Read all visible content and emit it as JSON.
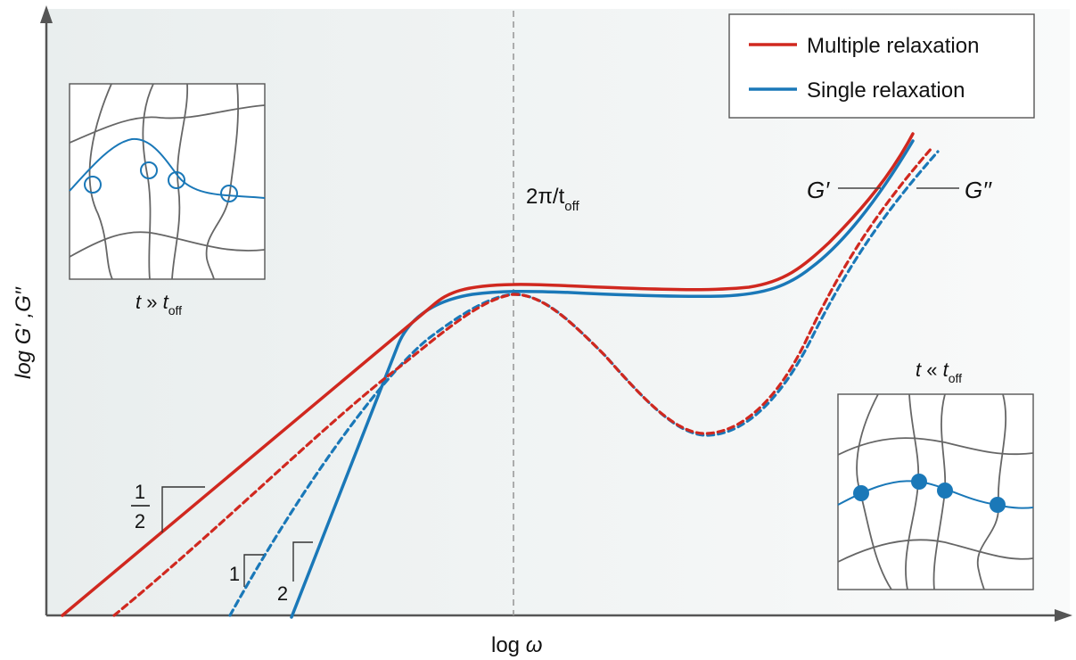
{
  "axes": {
    "x_label_prefix": "log ",
    "x_label_var": "ω",
    "y_label": "log G′ ,G′′"
  },
  "legend": {
    "items": [
      {
        "label": "Multiple relaxation",
        "color": "#d0281f"
      },
      {
        "label": "Single relaxation",
        "color": "#1a78b8"
      }
    ]
  },
  "annotations": {
    "crossover_main": "2π/t",
    "crossover_sub": "off",
    "g_prime": "G′",
    "g_double_prime": "G′′",
    "slope_half_num": "1",
    "slope_half_den": "2",
    "slope_one": "1",
    "slope_two": "2"
  },
  "insets": {
    "long_time": {
      "t": "t",
      "relation": " » ",
      "t2": "t",
      "sub": "off"
    },
    "short_time": {
      "t": "t",
      "relation": " « ",
      "t2": "t",
      "sub": "off"
    }
  },
  "colors": {
    "multiple": "#d0281f",
    "single": "#1a78b8",
    "network": "#666666",
    "axis": "#555555",
    "background": "#f1f4f4"
  },
  "icons": {
    "open_crosslink": "circle-outline-icon",
    "closed_crosslink": "filled-circle-icon"
  }
}
